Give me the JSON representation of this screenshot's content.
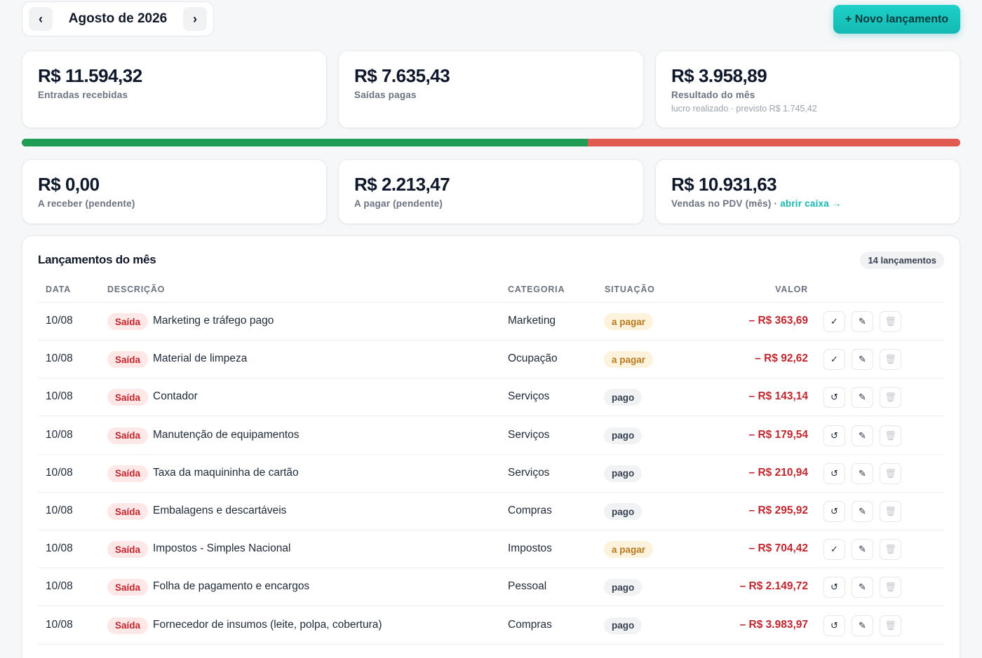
{
  "header": {
    "month": "Agosto de 2026",
    "prev_icon": "‹",
    "next_icon": "›",
    "new_button": "+ Novo lançamento"
  },
  "summary": {
    "income": {
      "amount": "R$ 11.594,32",
      "label": "Entradas recebidas"
    },
    "expenses": {
      "amount": "R$ 7.635,43",
      "label": "Saídas pagas"
    },
    "result": {
      "amount": "R$ 3.958,89",
      "label": "Resultado do mês",
      "note": "lucro realizado · previsto R$ 1.745,42"
    },
    "income_share": 0.6029
  },
  "pending": {
    "receivable": {
      "amount": "R$ 0,00",
      "label": "A receber (pendente)"
    },
    "payable": {
      "amount": "R$ 2.213,47",
      "label": "A pagar (pendente)"
    },
    "pdv": {
      "amount": "R$ 10.931,63",
      "label": "Vendas no PDV (mês) · ",
      "link": "abrir caixa →"
    }
  },
  "entries": {
    "title": "Lançamentos do mês",
    "count": "14 lançamentos",
    "columns": {
      "date": "DATA",
      "description": "DESCRIÇÃO",
      "category": "CATEGORIA",
      "status": "SITUAÇÃO",
      "value": "VALOR"
    },
    "icons": {
      "confirm": "✓",
      "undo": "↺",
      "edit": "✎",
      "delete": "🗑"
    },
    "rows": [
      {
        "date": "10/08",
        "type": "Saída",
        "description": "Marketing e tráfego pago",
        "category": "Marketing",
        "status": "a pagar",
        "value": "– R$ 363,69"
      },
      {
        "date": "10/08",
        "type": "Saída",
        "description": "Material de limpeza",
        "category": "Ocupação",
        "status": "a pagar",
        "value": "– R$ 92,62"
      },
      {
        "date": "10/08",
        "type": "Saída",
        "description": "Contador",
        "category": "Serviços",
        "status": "pago",
        "value": "– R$ 143,14"
      },
      {
        "date": "10/08",
        "type": "Saída",
        "description": "Manutenção de equipamentos",
        "category": "Serviços",
        "status": "pago",
        "value": "– R$ 179,54"
      },
      {
        "date": "10/08",
        "type": "Saída",
        "description": "Taxa da maquininha de cartão",
        "category": "Serviços",
        "status": "pago",
        "value": "– R$ 210,94"
      },
      {
        "date": "10/08",
        "type": "Saída",
        "description": "Embalagens e descartáveis",
        "category": "Compras",
        "status": "pago",
        "value": "– R$ 295,92"
      },
      {
        "date": "10/08",
        "type": "Saída",
        "description": "Impostos - Simples Nacional",
        "category": "Impostos",
        "status": "a pagar",
        "value": "– R$ 704,42"
      },
      {
        "date": "10/08",
        "type": "Saída",
        "description": "Folha de pagamento e encargos",
        "category": "Pessoal",
        "status": "pago",
        "value": "– R$ 2.149,72"
      },
      {
        "date": "10/08",
        "type": "Saída",
        "description": "Fornecedor de insumos (leite, polpa, cobertura)",
        "category": "Compras",
        "status": "pago",
        "value": "– R$ 3.983,97"
      }
    ]
  }
}
